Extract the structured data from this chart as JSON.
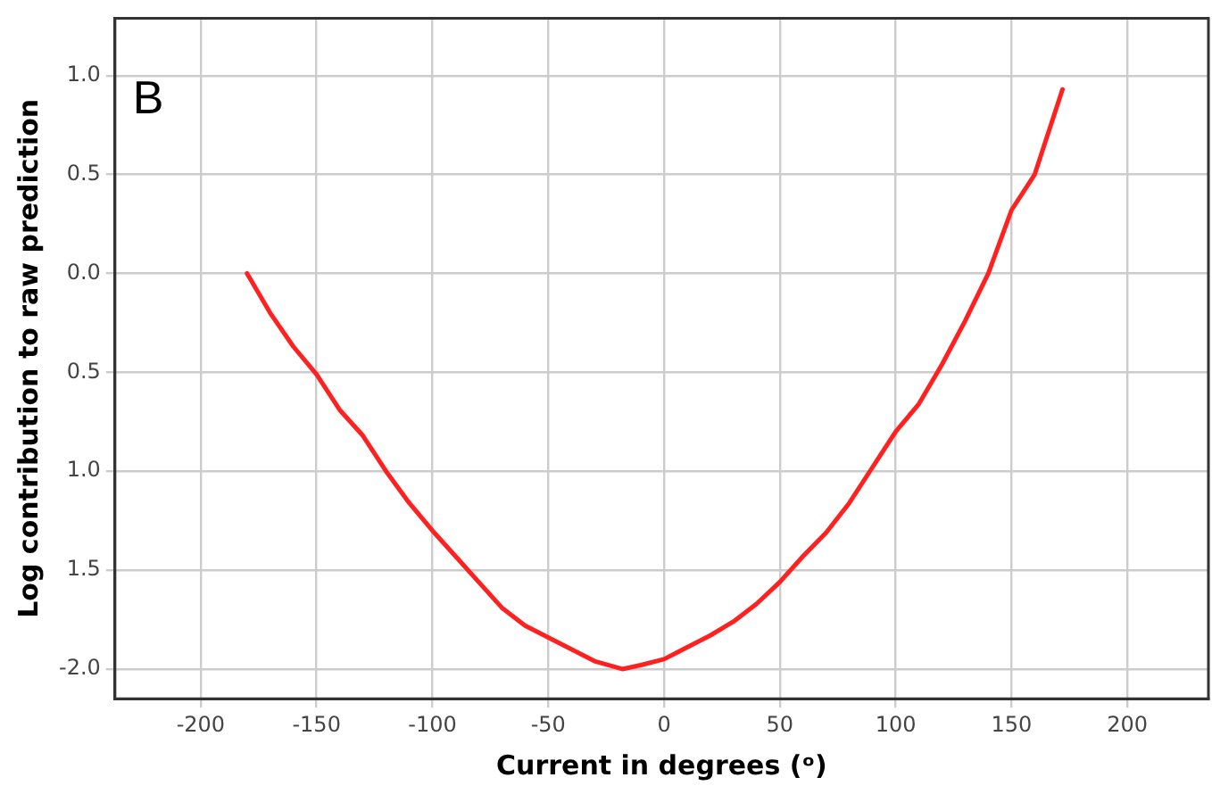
{
  "chart_data": {
    "type": "line",
    "xlabel": "Current in degrees (ᵒ)",
    "ylabel": "Log contribution to raw prediction",
    "annotations": [
      "B"
    ],
    "x": [
      -180,
      -170,
      -160,
      -150,
      -140,
      -130,
      -120,
      -110,
      -100,
      -90,
      -80,
      -70,
      -60,
      -50,
      -40,
      -30,
      -18,
      -10,
      0,
      10,
      20,
      30,
      40,
      50,
      60,
      70,
      80,
      90,
      100,
      110,
      120,
      130,
      140,
      150,
      160,
      172
    ],
    "series": [
      {
        "color": "#ff2020",
        "values": [
          0,
          -0.2,
          -0.37,
          -0.51,
          -0.69,
          -0.82,
          -1.0,
          -1.16,
          -1.3,
          -1.43,
          -1.56,
          -1.69,
          -1.78,
          -1.84,
          -1.9,
          -1.96,
          -2.0,
          -1.98,
          -1.95,
          -1.89,
          -1.83,
          -1.76,
          -1.67,
          -1.56,
          -1.43,
          -1.31,
          -1.16,
          -0.98,
          -0.8,
          -0.66,
          -0.46,
          -0.24,
          0.0,
          0.32,
          0.5,
          0.93
        ]
      }
    ],
    "xlim": [
      -237,
      235
    ],
    "xticks": [
      -200,
      -150,
      -100,
      -50,
      0,
      50,
      100,
      150,
      200
    ],
    "ylim": [
      -2.15,
      1.29
    ],
    "yticks": [
      {
        "value": -2.0,
        "label": "-2.0"
      },
      {
        "value": -1.5,
        "label": "1.5"
      },
      {
        "value": -1.0,
        "label": "1.0"
      },
      {
        "value": -0.5,
        "label": "0.5"
      },
      {
        "value": 0,
        "label": "0.0"
      },
      {
        "value": 0.5,
        "label": "0.5"
      },
      {
        "value": 1.0,
        "label": "1.0"
      }
    ],
    "grid": true,
    "legend": false,
    "marker": "none",
    "line_style": "solid"
  }
}
